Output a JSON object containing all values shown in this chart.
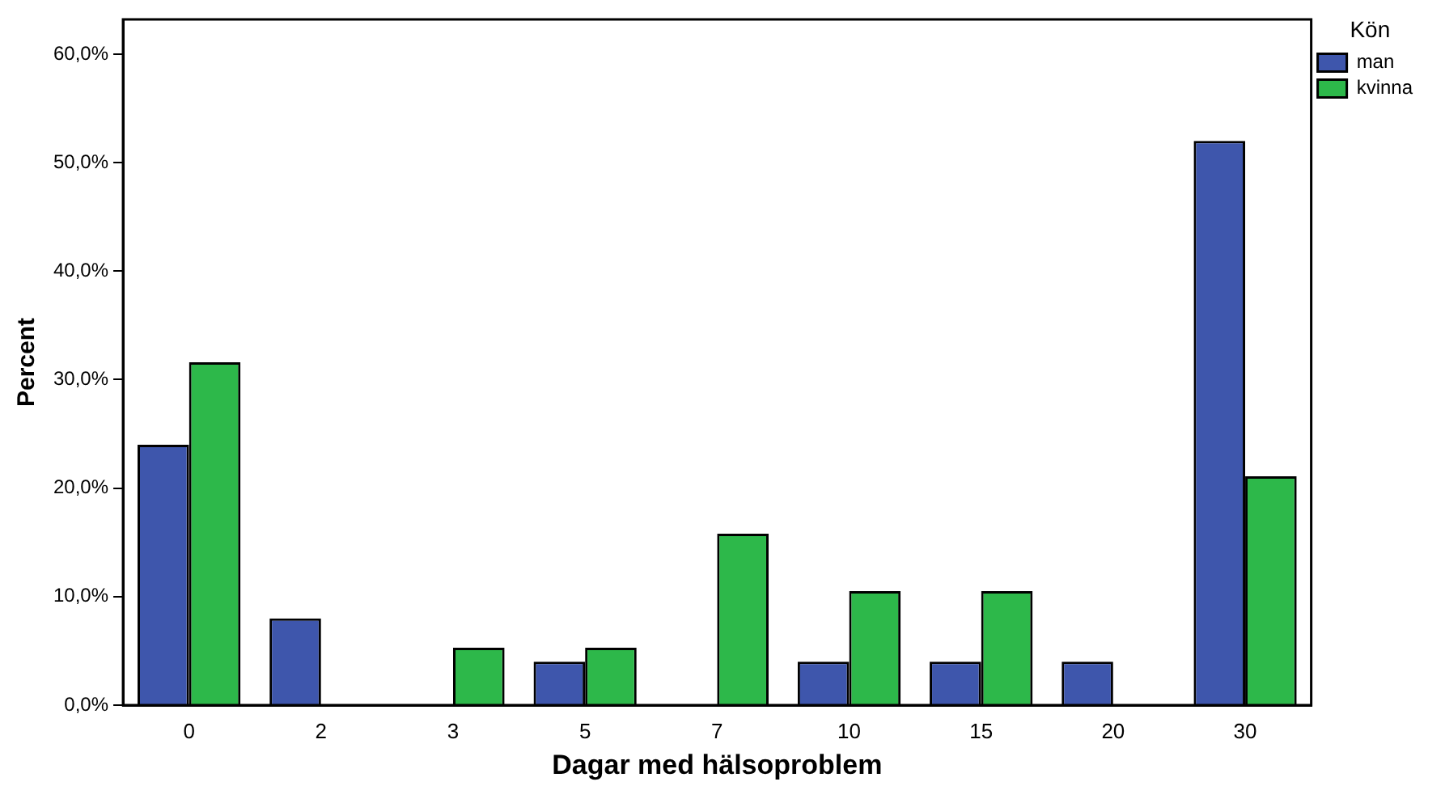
{
  "chart_data": {
    "type": "bar",
    "xlabel": "Dagar med hälsoproblem",
    "ylabel": "Percent",
    "legend_title": "Kön",
    "categories": [
      "0",
      "2",
      "3",
      "5",
      "7",
      "10",
      "15",
      "20",
      "30"
    ],
    "series": [
      {
        "name": "man",
        "color": "#3e56ac",
        "values": [
          24,
          8,
          0,
          4,
          0,
          4,
          4,
          4,
          52
        ]
      },
      {
        "name": "kvinna",
        "color": "#2db84a",
        "values": [
          31.6,
          0,
          5.3,
          5.3,
          15.8,
          10.5,
          10.5,
          0,
          21.1
        ]
      }
    ],
    "ylim": [
      0,
      63.2
    ],
    "yticks": [
      {
        "value": 0,
        "label": "0,0%"
      },
      {
        "value": 10,
        "label": "10,0%"
      },
      {
        "value": 20,
        "label": "20,0%"
      },
      {
        "value": 30,
        "label": "30,0%"
      },
      {
        "value": 40,
        "label": "40,0%"
      },
      {
        "value": 50,
        "label": "50,0%"
      },
      {
        "value": 60,
        "label": "60,0%"
      }
    ],
    "grid": false,
    "legend": "top right"
  }
}
